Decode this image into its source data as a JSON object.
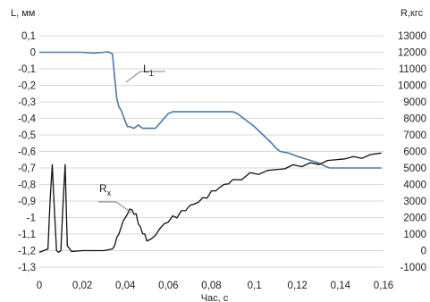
{
  "chart_data": {
    "type": "line",
    "xlabel": "Час, с",
    "ylabel_left": "L, мм",
    "ylabel_right": "R,кгс",
    "xlim": [
      0,
      0.16
    ],
    "ylim_left": [
      -1.3,
      0.1
    ],
    "ylim_right": [
      -1000,
      13000
    ],
    "x_ticks": [
      "0",
      "0,02",
      "0,04",
      "0,06",
      "0,08",
      "0,1",
      "0,12",
      "0,14",
      "0,16"
    ],
    "y_ticks_left": [
      "0,1",
      "0",
      "-0,1",
      "-0,2",
      "-0,3",
      "-0,4",
      "-0,5",
      "-0,6",
      "-0,7",
      "-0,8",
      "-0,9",
      "-1",
      "-1,1",
      "-1,2",
      "-1,3"
    ],
    "y_ticks_right": [
      "13000",
      "12000",
      "11000",
      "10000",
      "9000",
      "8000",
      "7000",
      "6000",
      "5000",
      "4000",
      "3000",
      "2000",
      "1000",
      "0",
      "-1000"
    ],
    "grid": "horizontal",
    "series": [
      {
        "name": "L1",
        "axis": "left",
        "color": "#4a7aa8",
        "x": [
          0,
          0.01,
          0.02,
          0.025,
          0.03,
          0.032,
          0.034,
          0.035,
          0.036,
          0.037,
          0.038,
          0.04,
          0.041,
          0.042,
          0.044,
          0.046,
          0.048,
          0.05,
          0.054,
          0.056,
          0.058,
          0.06,
          0.062,
          0.065,
          0.07,
          0.08,
          0.09,
          0.092,
          0.096,
          0.1,
          0.104,
          0.108,
          0.11,
          0.112,
          0.116,
          0.12,
          0.125,
          0.13,
          0.133,
          0.135,
          0.14,
          0.145,
          0.15,
          0.155,
          0.159
        ],
        "y": [
          0,
          0,
          0,
          -0.005,
          0,
          0.003,
          -0.01,
          -0.15,
          -0.28,
          -0.33,
          -0.35,
          -0.42,
          -0.45,
          -0.45,
          -0.46,
          -0.44,
          -0.46,
          -0.46,
          -0.46,
          -0.43,
          -0.4,
          -0.37,
          -0.36,
          -0.36,
          -0.36,
          -0.36,
          -0.36,
          -0.37,
          -0.41,
          -0.45,
          -0.5,
          -0.55,
          -0.58,
          -0.6,
          -0.61,
          -0.63,
          -0.65,
          -0.67,
          -0.69,
          -0.7,
          -0.7,
          -0.7,
          -0.7,
          -0.7,
          -0.7
        ]
      },
      {
        "name": "Rx",
        "axis": "right",
        "color": "#111111",
        "x": [
          0,
          0.002,
          0.004,
          0.005,
          0.006,
          0.007,
          0.008,
          0.009,
          0.01,
          0.011,
          0.012,
          0.013,
          0.015,
          0.02,
          0.025,
          0.03,
          0.034,
          0.035,
          0.036,
          0.037,
          0.038,
          0.039,
          0.04,
          0.041,
          0.042,
          0.043,
          0.044,
          0.045,
          0.046,
          0.047,
          0.048,
          0.049,
          0.05,
          0.052,
          0.054,
          0.056,
          0.058,
          0.06,
          0.062,
          0.064,
          0.066,
          0.068,
          0.07,
          0.072,
          0.074,
          0.076,
          0.078,
          0.08,
          0.082,
          0.084,
          0.086,
          0.088,
          0.09,
          0.094,
          0.098,
          0.102,
          0.106,
          0.11,
          0.114,
          0.118,
          0.122,
          0.126,
          0.13,
          0.134,
          0.138,
          0.142,
          0.146,
          0.15,
          0.154,
          0.159
        ],
        "y": [
          -100,
          0,
          100,
          3000,
          5200,
          2500,
          0,
          -100,
          0,
          2800,
          5200,
          300,
          -50,
          0,
          0,
          0,
          100,
          300,
          800,
          1000,
          1400,
          1800,
          2000,
          2300,
          2400,
          2600,
          2100,
          2300,
          1600,
          1400,
          1100,
          900,
          700,
          600,
          1000,
          1300,
          1600,
          1800,
          2000,
          2100,
          2300,
          2500,
          2700,
          2800,
          3000,
          3100,
          3300,
          3500,
          3700,
          3800,
          4000,
          4100,
          4200,
          4400,
          4600,
          4700,
          4800,
          4900,
          5000,
          5100,
          5200,
          5200,
          5300,
          5400,
          5500,
          5600,
          5600,
          5700,
          5700,
          6000
        ]
      }
    ],
    "annotations": [
      {
        "label": "L",
        "sub": "1",
        "series": "L1"
      },
      {
        "label": "R",
        "sub": "x",
        "series": "Rx"
      }
    ]
  }
}
